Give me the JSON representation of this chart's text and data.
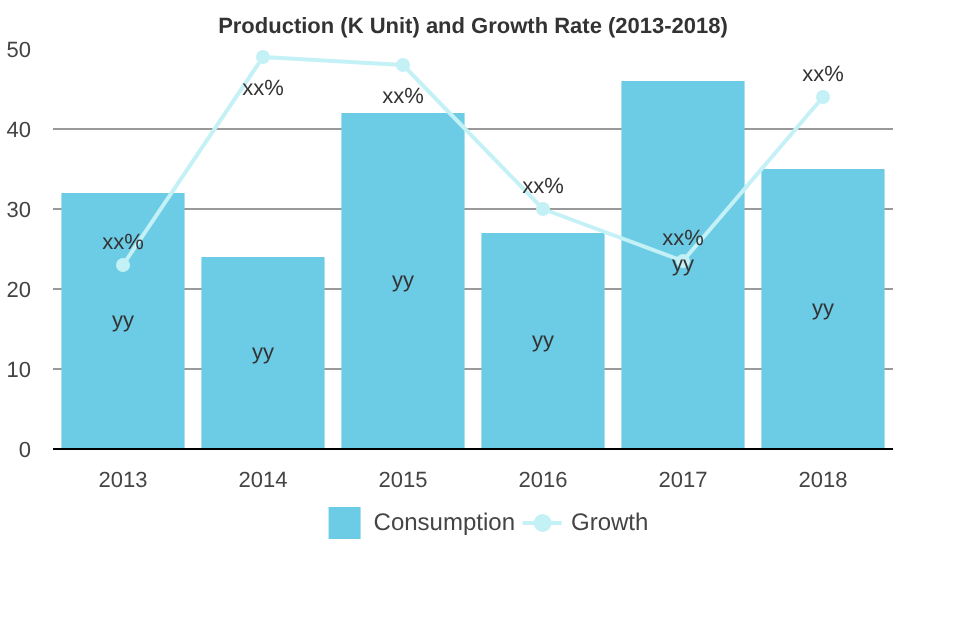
{
  "chart_data": {
    "type": "bar",
    "title": "Production (K Unit) and Growth Rate (2013-2018)",
    "categories": [
      "2013",
      "2014",
      "2015",
      "2016",
      "2017",
      "2018"
    ],
    "ylim": [
      0,
      50
    ],
    "yticks": [
      0,
      10,
      20,
      30,
      40,
      50
    ],
    "grid": "y",
    "legend": "bottom",
    "series": [
      {
        "name": "Consumption",
        "color": "#6ccbe5",
        "values": [
          32,
          24,
          42,
          27,
          46,
          35
        ],
        "value_labels": [
          "yy",
          "yy",
          "yy",
          "yy",
          "yy",
          "yy"
        ]
      },
      {
        "name": "Growth",
        "type": "line",
        "color": "#c4f1f6",
        "marker": "circle",
        "values": [
          23,
          49,
          48,
          30,
          23.5,
          44
        ],
        "value_labels": [
          "xx%",
          "xx%",
          "xx%",
          "xx%",
          "xx%",
          "xx%"
        ]
      }
    ]
  }
}
